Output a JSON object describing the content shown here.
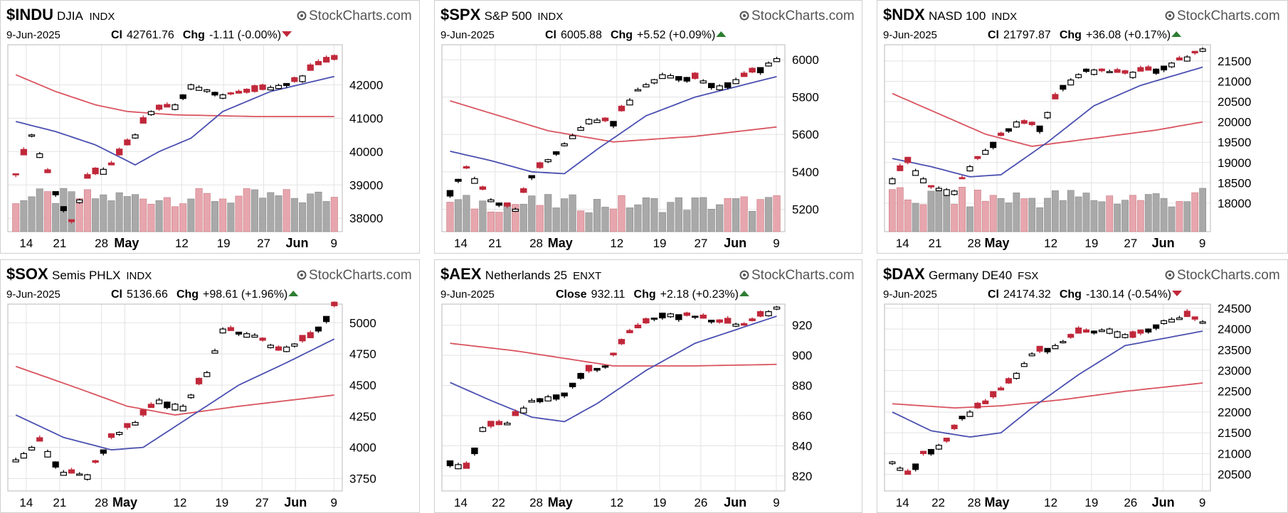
{
  "brand": "StockCharts.com",
  "colors": {
    "up": "#000000",
    "down": "#c0283a",
    "ma_short": "#4a4fb0",
    "ma_long": "#d9545f",
    "vol_up": "#a9a9a9",
    "vol_down": "#e7a6ad",
    "up_arrow": "#2e7d32",
    "down_arrow": "#c0283a"
  },
  "chart_data": [
    {
      "type": "candlestick",
      "symbol": "$INDU",
      "name": "DJIA",
      "exchange": "INDX",
      "date": "9-Jun-2025",
      "close_label": "Cl",
      "close": "42761.76",
      "chg_label": "Chg",
      "chg": "-1.11 (-0.00%)",
      "direction": "down",
      "ylim": [
        37600,
        43200
      ],
      "yticks": [
        "42000",
        "41000",
        "40000",
        "39000",
        "38000"
      ],
      "xticks": [
        {
          "label": "14",
          "pos": 0.055
        },
        {
          "label": "21",
          "pos": 0.155
        },
        {
          "label": "28",
          "pos": 0.28
        },
        {
          "label": "May",
          "pos": 0.355,
          "bold": true
        },
        {
          "label": "12",
          "pos": 0.52
        },
        {
          "label": "19",
          "pos": 0.645
        },
        {
          "label": "27",
          "pos": 0.765
        },
        {
          "label": "Jun",
          "pos": 0.865,
          "bold": true
        },
        {
          "label": "9",
          "pos": 0.975
        }
      ],
      "n_candles": 41,
      "close_path": [
        [
          0,
          39300
        ],
        [
          2,
          40500
        ],
        [
          5,
          38800
        ],
        [
          7,
          37900
        ],
        [
          9,
          39200
        ],
        [
          12,
          39600
        ],
        [
          15,
          40500
        ],
        [
          17,
          41200
        ],
        [
          20,
          41400
        ],
        [
          22,
          42000
        ],
        [
          26,
          41700
        ],
        [
          30,
          41800
        ],
        [
          35,
          42100
        ],
        [
          38,
          42600
        ],
        [
          40,
          42762
        ]
      ],
      "ma50": [
        [
          0,
          42300
        ],
        [
          5,
          41800
        ],
        [
          10,
          41400
        ],
        [
          14,
          41200
        ],
        [
          20,
          41100
        ],
        [
          30,
          41050
        ],
        [
          40,
          41050
        ]
      ],
      "ma20": [
        [
          0,
          40900
        ],
        [
          5,
          40600
        ],
        [
          10,
          40200
        ],
        [
          15,
          39600
        ],
        [
          18,
          40000
        ],
        [
          22,
          40400
        ],
        [
          26,
          41200
        ],
        [
          32,
          41800
        ],
        [
          40,
          42250
        ]
      ],
      "vol_min": 37900,
      "vol_max": 38900
    },
    {
      "type": "candlestick",
      "symbol": "$SPX",
      "name": "S&P 500",
      "exchange": "INDX",
      "date": "9-Jun-2025",
      "close_label": "Cl",
      "close": "6005.88",
      "chg_label": "Chg",
      "chg": "+5.52 (+0.09%)",
      "direction": "up",
      "ylim": [
        5080,
        6080
      ],
      "yticks": [
        "6000",
        "5800",
        "5600",
        "5400",
        "5200"
      ],
      "xticks": [
        {
          "label": "14",
          "pos": 0.055
        },
        {
          "label": "21",
          "pos": 0.155
        },
        {
          "label": "28",
          "pos": 0.275
        },
        {
          "label": "May",
          "pos": 0.345,
          "bold": true
        },
        {
          "label": "12",
          "pos": 0.51
        },
        {
          "label": "19",
          "pos": 0.635
        },
        {
          "label": "27",
          "pos": 0.755
        },
        {
          "label": "Jun",
          "pos": 0.855,
          "bold": true
        },
        {
          "label": "9",
          "pos": 0.975
        }
      ],
      "n_candles": 41,
      "close_path": [
        [
          0,
          5300
        ],
        [
          2,
          5420
        ],
        [
          5,
          5250
        ],
        [
          8,
          5200
        ],
        [
          10,
          5380
        ],
        [
          14,
          5550
        ],
        [
          17,
          5680
        ],
        [
          20,
          5670
        ],
        [
          23,
          5840
        ],
        [
          26,
          5920
        ],
        [
          30,
          5900
        ],
        [
          33,
          5860
        ],
        [
          36,
          5910
        ],
        [
          40,
          6006
        ]
      ],
      "ma50": [
        [
          0,
          5780
        ],
        [
          6,
          5700
        ],
        [
          12,
          5620
        ],
        [
          20,
          5560
        ],
        [
          30,
          5590
        ],
        [
          40,
          5640
        ]
      ],
      "ma20": [
        [
          0,
          5510
        ],
        [
          5,
          5460
        ],
        [
          10,
          5400
        ],
        [
          14,
          5390
        ],
        [
          18,
          5520
        ],
        [
          24,
          5700
        ],
        [
          30,
          5800
        ],
        [
          40,
          5910
        ]
      ],
      "vol_min": 5100,
      "vol_max": 5280
    },
    {
      "type": "candlestick",
      "symbol": "$NDX",
      "name": "NASD 100",
      "exchange": "INDX",
      "date": "9-Jun-2025",
      "close_label": "Cl",
      "close": "21797.87",
      "chg_label": "Chg",
      "chg": "+36.08 (+0.17%)",
      "direction": "up",
      "ylim": [
        17300,
        21900
      ],
      "yticks": [
        "21500",
        "21000",
        "20500",
        "20000",
        "19500",
        "19000",
        "18500",
        "18000"
      ],
      "xticks": [
        {
          "label": "14",
          "pos": 0.055
        },
        {
          "label": "21",
          "pos": 0.155
        },
        {
          "label": "28",
          "pos": 0.275
        },
        {
          "label": "May",
          "pos": 0.345,
          "bold": true
        },
        {
          "label": "12",
          "pos": 0.51
        },
        {
          "label": "19",
          "pos": 0.635
        },
        {
          "label": "27",
          "pos": 0.755
        },
        {
          "label": "Jun",
          "pos": 0.855,
          "bold": true
        },
        {
          "label": "9",
          "pos": 0.975
        }
      ],
      "n_candles": 41,
      "close_path": [
        [
          0,
          18600
        ],
        [
          2,
          19000
        ],
        [
          5,
          18400
        ],
        [
          8,
          18300
        ],
        [
          10,
          18900
        ],
        [
          13,
          19500
        ],
        [
          16,
          20000
        ],
        [
          19,
          19900
        ],
        [
          22,
          20900
        ],
        [
          25,
          21300
        ],
        [
          30,
          21200
        ],
        [
          34,
          21300
        ],
        [
          38,
          21600
        ],
        [
          40,
          21798
        ]
      ],
      "ma50": [
        [
          0,
          20700
        ],
        [
          6,
          20200
        ],
        [
          12,
          19700
        ],
        [
          18,
          19400
        ],
        [
          26,
          19600
        ],
        [
          34,
          19800
        ],
        [
          40,
          20000
        ]
      ],
      "ma20": [
        [
          0,
          19100
        ],
        [
          5,
          18900
        ],
        [
          10,
          18650
        ],
        [
          14,
          18700
        ],
        [
          20,
          19500
        ],
        [
          26,
          20400
        ],
        [
          32,
          20900
        ],
        [
          40,
          21350
        ]
      ],
      "vol_min": 17400,
      "vol_max": 18400
    },
    {
      "type": "candlestick",
      "symbol": "$SOX",
      "name": "Semis PHLX",
      "exchange": "INDX",
      "date": "9-Jun-2025",
      "close_label": "Cl",
      "close": "5136.66",
      "chg_label": "Chg",
      "chg": "+98.61 (+1.96%)",
      "direction": "up",
      "ylim": [
        3650,
        5150
      ],
      "yticks": [
        "5000",
        "4750",
        "4500",
        "4250",
        "4000",
        "3750"
      ],
      "xticks": [
        {
          "label": "14",
          "pos": 0.055
        },
        {
          "label": "21",
          "pos": 0.155
        },
        {
          "label": "28",
          "pos": 0.28
        },
        {
          "label": "May",
          "pos": 0.35,
          "bold": true
        },
        {
          "label": "12",
          "pos": 0.515
        },
        {
          "label": "19",
          "pos": 0.64
        },
        {
          "label": "27",
          "pos": 0.76
        },
        {
          "label": "Jun",
          "pos": 0.86,
          "bold": true
        },
        {
          "label": "9",
          "pos": 0.975
        }
      ],
      "n_candles": 41,
      "close_path": [
        [
          0,
          3900
        ],
        [
          3,
          4050
        ],
        [
          6,
          3800
        ],
        [
          9,
          3780
        ],
        [
          12,
          4080
        ],
        [
          15,
          4200
        ],
        [
          18,
          4380
        ],
        [
          21,
          4330
        ],
        [
          24,
          4600
        ],
        [
          26,
          4950
        ],
        [
          30,
          4900
        ],
        [
          33,
          4780
        ],
        [
          37,
          4880
        ],
        [
          40,
          5137
        ]
      ],
      "ma50": [
        [
          0,
          4650
        ],
        [
          8,
          4470
        ],
        [
          14,
          4330
        ],
        [
          20,
          4260
        ],
        [
          28,
          4330
        ],
        [
          40,
          4420
        ]
      ],
      "ma20": [
        [
          0,
          4260
        ],
        [
          6,
          4080
        ],
        [
          12,
          3980
        ],
        [
          16,
          4000
        ],
        [
          22,
          4250
        ],
        [
          28,
          4500
        ],
        [
          34,
          4680
        ],
        [
          40,
          4870
        ]
      ],
      "vol_min": null,
      "vol_max": null
    },
    {
      "type": "candlestick",
      "symbol": "$AEX",
      "name": "Netherlands 25",
      "exchange": "ENXT",
      "date": "9-Jun-2025",
      "close_label": "Close",
      "close": "932.11",
      "chg_label": "Chg",
      "chg": "+2.18 (+0.23%)",
      "direction": "up",
      "ylim": [
        810,
        934
      ],
      "yticks": [
        "920",
        "900",
        "880",
        "860",
        "840",
        "820"
      ],
      "xticks": [
        {
          "label": "14",
          "pos": 0.055
        },
        {
          "label": "22",
          "pos": 0.165
        },
        {
          "label": "28",
          "pos": 0.275
        },
        {
          "label": "May",
          "pos": 0.345,
          "bold": true
        },
        {
          "label": "12",
          "pos": 0.51
        },
        {
          "label": "19",
          "pos": 0.635
        },
        {
          "label": "26",
          "pos": 0.755
        },
        {
          "label": "Jun",
          "pos": 0.855,
          "bold": true
        },
        {
          "label": "9",
          "pos": 0.975
        }
      ],
      "n_candles": 41,
      "close_path": [
        [
          0,
          830
        ],
        [
          2,
          825
        ],
        [
          4,
          852
        ],
        [
          7,
          855
        ],
        [
          10,
          870
        ],
        [
          14,
          875
        ],
        [
          16,
          888
        ],
        [
          19,
          893
        ],
        [
          22,
          915
        ],
        [
          26,
          928
        ],
        [
          30,
          926
        ],
        [
          33,
          922
        ],
        [
          36,
          920
        ],
        [
          40,
          932
        ]
      ],
      "ma50": [
        [
          0,
          908
        ],
        [
          8,
          903
        ],
        [
          14,
          898
        ],
        [
          20,
          893
        ],
        [
          30,
          893
        ],
        [
          40,
          894
        ]
      ],
      "ma20": [
        [
          0,
          882
        ],
        [
          5,
          870
        ],
        [
          10,
          859
        ],
        [
          14,
          856
        ],
        [
          18,
          868
        ],
        [
          24,
          890
        ],
        [
          30,
          908
        ],
        [
          40,
          926
        ]
      ],
      "vol_min": null,
      "vol_max": null
    },
    {
      "type": "candlestick",
      "symbol": "$DAX",
      "name": "Germany DE40",
      "exchange": "FSX",
      "date": "9-Jun-2025",
      "close_label": "Cl",
      "close": "24174.32",
      "chg_label": "Chg",
      "chg": "-130.14 (-0.54%)",
      "direction": "down",
      "ylim": [
        20100,
        24600
      ],
      "yticks": [
        "24500",
        "24000",
        "23500",
        "23000",
        "22500",
        "22000",
        "21500",
        "21000",
        "20500"
      ],
      "xticks": [
        {
          "label": "14",
          "pos": 0.055
        },
        {
          "label": "22",
          "pos": 0.165
        },
        {
          "label": "28",
          "pos": 0.275
        },
        {
          "label": "May",
          "pos": 0.345,
          "bold": true
        },
        {
          "label": "12",
          "pos": 0.51
        },
        {
          "label": "19",
          "pos": 0.635
        },
        {
          "label": "26",
          "pos": 0.755
        },
        {
          "label": "Jun",
          "pos": 0.855,
          "bold": true
        },
        {
          "label": "9",
          "pos": 0.975
        }
      ],
      "n_candles": 41,
      "close_path": [
        [
          0,
          20800
        ],
        [
          2,
          20500
        ],
        [
          4,
          21000
        ],
        [
          7,
          21300
        ],
        [
          9,
          21900
        ],
        [
          12,
          22200
        ],
        [
          15,
          22700
        ],
        [
          18,
          23400
        ],
        [
          21,
          23600
        ],
        [
          24,
          23900
        ],
        [
          28,
          24000
        ],
        [
          31,
          23800
        ],
        [
          35,
          24200
        ],
        [
          38,
          24300
        ],
        [
          40,
          24174
        ]
      ],
      "ma50": [
        [
          0,
          22200
        ],
        [
          8,
          22100
        ],
        [
          14,
          22150
        ],
        [
          22,
          22300
        ],
        [
          30,
          22500
        ],
        [
          40,
          22700
        ]
      ],
      "ma20": [
        [
          0,
          22000
        ],
        [
          5,
          21550
        ],
        [
          10,
          21400
        ],
        [
          14,
          21500
        ],
        [
          18,
          22100
        ],
        [
          24,
          22900
        ],
        [
          30,
          23600
        ],
        [
          40,
          23950
        ]
      ],
      "vol_min": null,
      "vol_max": null
    }
  ]
}
